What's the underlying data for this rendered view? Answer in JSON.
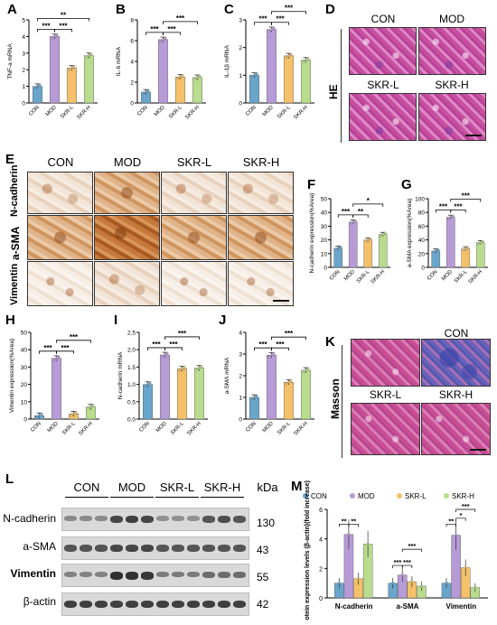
{
  "colors": {
    "CON": "#6aa5cc",
    "MOD": "#b79bd6",
    "SKR-L": "#f4c16a",
    "SKR-H": "#b9dc8e"
  },
  "groups": [
    "CON",
    "MOD",
    "SKR-L",
    "SKR-H"
  ],
  "panels": {
    "A": {
      "label": "A"
    },
    "B": {
      "label": "B"
    },
    "C": {
      "label": "C"
    },
    "D": {
      "label": "D",
      "row_label": "HE",
      "image_labels": [
        "CON",
        "MOD",
        "SKR-L",
        "SKR-H"
      ]
    },
    "E": {
      "label": "E",
      "columns": [
        "CON",
        "MOD",
        "SKR-L",
        "SKR-H"
      ],
      "rows": [
        "N-cadherin",
        "a-SMA",
        "Vimentin"
      ]
    },
    "F": {
      "label": "F"
    },
    "G": {
      "label": "G"
    },
    "H": {
      "label": "H"
    },
    "I": {
      "label": "I"
    },
    "J": {
      "label": "J"
    },
    "K": {
      "label": "K",
      "row_label": "Masson",
      "image_labels": [
        "CON",
        "MOD",
        "SKR-L",
        "SKR-H"
      ]
    },
    "L": {
      "label": "L",
      "columns": [
        "CON",
        "MOD",
        "SKR-L",
        "SKR-H"
      ],
      "unit": "kDa",
      "bands": [
        {
          "name": "N-cadherin",
          "kda": "130"
        },
        {
          "name": "a-SMA",
          "kda": "43"
        },
        {
          "name": "Vimentin",
          "kda": "55"
        },
        {
          "name": "β-actin",
          "kda": "42"
        }
      ]
    },
    "M": {
      "label": "M"
    }
  },
  "chart_data": [
    {
      "id": "A",
      "type": "bar",
      "categories": [
        "CON",
        "MOD",
        "SKR-L",
        "SKR-H"
      ],
      "values": [
        1.0,
        4.0,
        2.1,
        2.85
      ],
      "ylabel": "TNF-a mRNA",
      "ylim": [
        0,
        5
      ],
      "yticks": [
        "0",
        "1",
        "2",
        "3",
        "4",
        "5"
      ],
      "sig": [
        {
          "a": 0,
          "b": 1,
          "t": "***",
          "lvl": 0
        },
        {
          "a": 1,
          "b": 2,
          "t": "***",
          "lvl": 0
        },
        {
          "a": 0,
          "b": 3,
          "t": "**",
          "lvl": 1
        }
      ]
    },
    {
      "id": "B",
      "type": "bar",
      "categories": [
        "CON",
        "MOD",
        "SKR-L",
        "SKR-H"
      ],
      "values": [
        1.05,
        6.1,
        2.5,
        2.45
      ],
      "ylabel": "IL-6 mRNA",
      "ylim": [
        0,
        8
      ],
      "yticks": [
        "0",
        "2",
        "4",
        "6",
        "8"
      ],
      "sig": [
        {
          "a": 0,
          "b": 1,
          "t": "***",
          "lvl": 0
        },
        {
          "a": 1,
          "b": 2,
          "t": "***",
          "lvl": 0
        },
        {
          "a": 1,
          "b": 3,
          "t": "***",
          "lvl": 1
        }
      ]
    },
    {
      "id": "C",
      "type": "bar",
      "categories": [
        "CON",
        "MOD",
        "SKR-L",
        "SKR-H"
      ],
      "values": [
        1.0,
        2.65,
        1.7,
        1.55
      ],
      "ylabel": "IL-1β mRNA",
      "ylim": [
        0,
        3
      ],
      "yticks": [
        "0",
        "1",
        "2",
        "3"
      ],
      "sig": [
        {
          "a": 0,
          "b": 1,
          "t": "***",
          "lvl": 0
        },
        {
          "a": 1,
          "b": 2,
          "t": "***",
          "lvl": 0
        },
        {
          "a": 1,
          "b": 3,
          "t": "***",
          "lvl": 1
        }
      ]
    },
    {
      "id": "F",
      "type": "bar",
      "categories": [
        "CON",
        "MOD",
        "SKR-L",
        "SKR-H"
      ],
      "values": [
        14,
        33,
        20,
        24
      ],
      "ylabel": "N-cadherin expression(%Area)",
      "ylim": [
        0,
        50
      ],
      "yticks": [
        "0",
        "10",
        "20",
        "30",
        "40",
        "50"
      ],
      "sig": [
        {
          "a": 0,
          "b": 1,
          "t": "***",
          "lvl": 0
        },
        {
          "a": 1,
          "b": 2,
          "t": "**",
          "lvl": 0
        },
        {
          "a": 1,
          "b": 3,
          "t": "*",
          "lvl": 1
        }
      ]
    },
    {
      "id": "G",
      "type": "bar",
      "categories": [
        "CON",
        "MOD",
        "SKR-L",
        "SKR-H"
      ],
      "values": [
        24,
        73,
        27,
        36
      ],
      "ylabel": "a-SMA expression(%Area)",
      "ylim": [
        0,
        100
      ],
      "yticks": [
        "0",
        "20",
        "40",
        "60",
        "80",
        "100"
      ],
      "sig": [
        {
          "a": 0,
          "b": 1,
          "t": "***",
          "lvl": 0
        },
        {
          "a": 1,
          "b": 2,
          "t": "***",
          "lvl": 0
        },
        {
          "a": 1,
          "b": 3,
          "t": "***",
          "lvl": 1
        }
      ]
    },
    {
      "id": "H",
      "type": "bar",
      "categories": [
        "CON",
        "MOD",
        "SKR-L",
        "SKR-H"
      ],
      "values": [
        2,
        35,
        3,
        7
      ],
      "ylabel": "Vimentin expression(%Area)",
      "ylim": [
        0,
        50
      ],
      "yticks": [
        "0",
        "10",
        "20",
        "30",
        "40",
        "50"
      ],
      "sig": [
        {
          "a": 0,
          "b": 1,
          "t": "***",
          "lvl": 0
        },
        {
          "a": 1,
          "b": 2,
          "t": "***",
          "lvl": 0
        },
        {
          "a": 1,
          "b": 3,
          "t": "***",
          "lvl": 1
        }
      ]
    },
    {
      "id": "I",
      "type": "bar",
      "categories": [
        "CON",
        "MOD",
        "SKR-L",
        "SKR-H"
      ],
      "values": [
        1.0,
        1.85,
        1.45,
        1.47
      ],
      "ylabel": "N-cadherin mRNA",
      "ylim": [
        0,
        2.5
      ],
      "yticks": [
        "0.0",
        "0.5",
        "1.0",
        "1.5",
        "2.0",
        "2.5"
      ],
      "sig": [
        {
          "a": 0,
          "b": 1,
          "t": "***",
          "lvl": 0
        },
        {
          "a": 1,
          "b": 2,
          "t": "***",
          "lvl": 0
        },
        {
          "a": 1,
          "b": 3,
          "t": "***",
          "lvl": 1
        }
      ]
    },
    {
      "id": "J",
      "type": "bar",
      "categories": [
        "CON",
        "MOD",
        "SKR-L",
        "SKR-H"
      ],
      "values": [
        1.0,
        2.95,
        1.7,
        2.25
      ],
      "ylabel": "a-SMA mRNA",
      "ylim": [
        0,
        4
      ],
      "yticks": [
        "0",
        "1",
        "2",
        "3",
        "4"
      ],
      "sig": [
        {
          "a": 0,
          "b": 1,
          "t": "***",
          "lvl": 0
        },
        {
          "a": 1,
          "b": 2,
          "t": "***",
          "lvl": 0
        },
        {
          "a": 1,
          "b": 3,
          "t": "***",
          "lvl": 1
        }
      ]
    },
    {
      "id": "M",
      "type": "bar",
      "categories": [
        "N-cadherin",
        "a-SMA",
        "Vimentin"
      ],
      "ylabel": "Protein expression levels (β-actin)(fold increase)",
      "ylim": [
        0,
        6
      ],
      "yticks": [
        "0",
        "2",
        "4",
        "6"
      ],
      "legend": [
        "CON",
        "MOD",
        "SKR-L",
        "SKR-H"
      ],
      "series": [
        {
          "name": "CON",
          "values": [
            1.0,
            1.0,
            1.0
          ]
        },
        {
          "name": "MOD",
          "values": [
            4.3,
            1.55,
            4.25
          ]
        },
        {
          "name": "SKR-L",
          "values": [
            1.3,
            1.1,
            2.05
          ]
        },
        {
          "name": "SKR-H",
          "values": [
            3.65,
            0.8,
            0.7
          ]
        }
      ],
      "sig_text": [
        "**",
        "**",
        "***",
        "***",
        "***",
        "**",
        "*",
        "***"
      ]
    }
  ]
}
